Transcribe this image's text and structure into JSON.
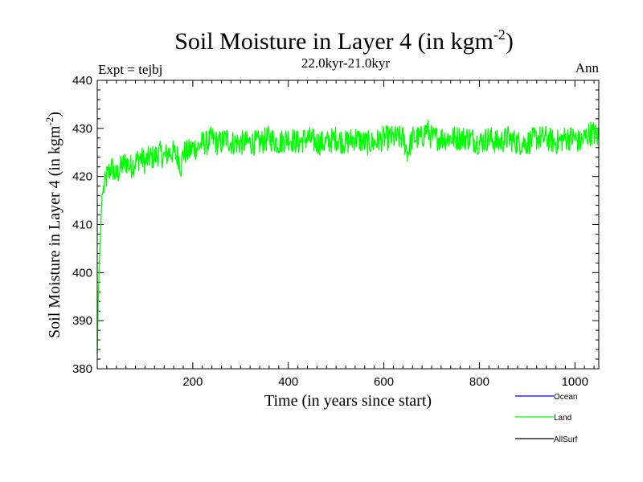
{
  "chart_data": {
    "type": "line",
    "title": "Soil Moisture in Layer 4 (in kgm",
    "title_sup": "-2",
    "title_close": ")",
    "subtitle": "22.0kyr-21.0kyr",
    "left_label": "Expt = tejbj",
    "right_label": "Ann",
    "xlabel": "Time (in years since start)",
    "ylabel": "Soil Moisture in Layer 4 (in kgm",
    "ylabel_sup": "-2",
    "ylabel_close": ")",
    "xlim": [
      0,
      1050
    ],
    "ylim": [
      380,
      440
    ],
    "xticks": [
      200,
      400,
      600,
      800,
      1000
    ],
    "yticks": [
      380,
      390,
      400,
      410,
      420,
      430,
      440
    ],
    "colors": {
      "ocean": "#0000ff",
      "land": "#00ff00",
      "allsurf": "#000000"
    },
    "legend": [
      {
        "name": "Ocean",
        "color": "#0000ff"
      },
      {
        "name": "Land",
        "color": "#00ff00"
      },
      {
        "name": "AllSurf",
        "color": "#000000"
      }
    ],
    "series": [
      {
        "name": "Land",
        "color": "#00ff00",
        "x": [
          0,
          2,
          4,
          6,
          8,
          10,
          15,
          20,
          25,
          30,
          40,
          50,
          60,
          70,
          80,
          90,
          100,
          110,
          120,
          130,
          140,
          150,
          160,
          170,
          175,
          180,
          190,
          200,
          210,
          220,
          230,
          240,
          250,
          260,
          270,
          280,
          290,
          300,
          320,
          340,
          360,
          380,
          400,
          420,
          440,
          460,
          480,
          500,
          520,
          540,
          560,
          580,
          600,
          620,
          640,
          650,
          660,
          680,
          690,
          700,
          720,
          740,
          760,
          780,
          800,
          820,
          840,
          860,
          880,
          900,
          920,
          940,
          960,
          980,
          1000,
          1010,
          1020,
          1030,
          1040,
          1050
        ],
        "y": [
          383,
          394,
          401,
          406,
          411,
          416,
          418,
          420,
          421,
          422,
          420,
          422,
          423,
          422,
          423,
          424,
          423,
          424,
          424,
          425,
          424,
          425,
          425,
          424,
          422,
          425,
          425,
          426,
          426,
          427,
          427,
          428,
          427,
          427,
          428,
          427,
          427,
          427,
          427,
          427,
          428,
          427,
          428,
          427,
          428,
          427,
          427,
          428,
          427,
          428,
          427,
          427,
          428,
          428,
          428,
          425,
          428,
          428,
          430,
          428,
          428,
          428,
          428,
          428,
          427,
          428,
          427,
          428,
          427,
          427,
          428,
          428,
          427,
          428,
          428,
          427,
          428,
          429,
          429,
          428
        ]
      }
    ]
  }
}
